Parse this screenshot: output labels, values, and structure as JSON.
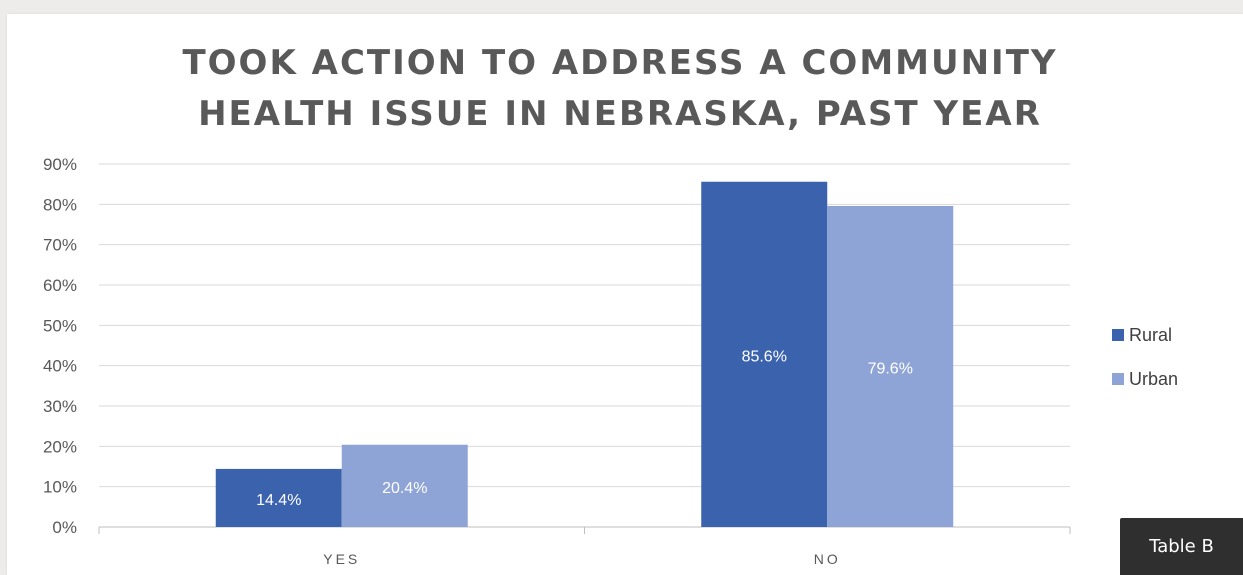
{
  "badge": "Table B",
  "chart_data": {
    "type": "bar",
    "title": "TOOK ACTION TO ADDRESS A COMMUNITY HEALTH ISSUE IN NEBRASKA, PAST YEAR",
    "categories": [
      "YES",
      "NO"
    ],
    "series": [
      {
        "name": "Rural",
        "values": [
          14.4,
          85.6
        ],
        "labels": [
          "14.4%",
          "85.6%"
        ],
        "color": "#3b62ad"
      },
      {
        "name": "Urban",
        "values": [
          20.4,
          79.6
        ],
        "labels": [
          "20.4%",
          "79.6%"
        ],
        "color": "#8fa4d6"
      }
    ],
    "ylim": [
      0,
      90
    ],
    "yticks": [
      "0%",
      "10%",
      "20%",
      "30%",
      "40%",
      "50%",
      "60%",
      "70%",
      "80%",
      "90%"
    ],
    "xlabel": "",
    "ylabel": "",
    "grid": true,
    "legend_position": "right"
  }
}
